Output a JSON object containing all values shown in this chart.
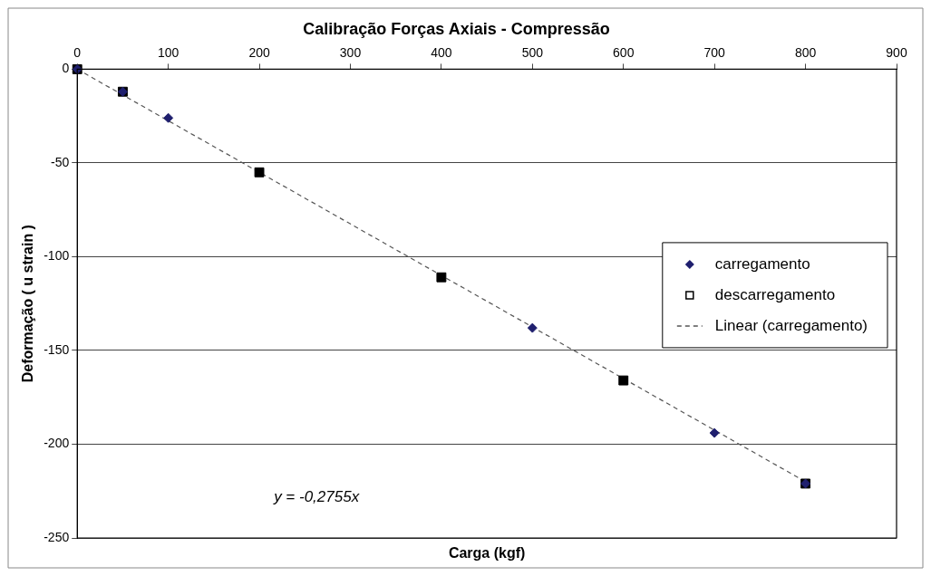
{
  "chart_data": {
    "type": "scatter",
    "title": "Calibração Forças Axiais - Compressão",
    "xlabel": "Carga (kgf)",
    "ylabel": "Deformação ( u strain )",
    "xlim": [
      0,
      900
    ],
    "xticks": [
      0,
      100,
      200,
      300,
      400,
      500,
      600,
      700,
      800,
      900
    ],
    "ylim": [
      -250,
      0
    ],
    "yticks": [
      -250,
      -200,
      -150,
      -100,
      -50,
      0
    ],
    "grid": "y",
    "legend": "top right",
    "annotations": [
      "y = -0,2755x"
    ],
    "series": [
      {
        "name": "carregamento",
        "color": "#1f1f6e",
        "marker": "diamond",
        "x": [
          0,
          50,
          100,
          500,
          700,
          800
        ],
        "values": [
          0,
          -12,
          -26,
          -138,
          -194,
          -221
        ]
      },
      {
        "name": "descarregamento",
        "color": "#000000",
        "marker": "square",
        "x": [
          0,
          50,
          200,
          400,
          600,
          800
        ],
        "values": [
          0,
          -12,
          -55,
          -111,
          -166,
          -221
        ]
      },
      {
        "name": "Linear (carregamento)",
        "type": "line",
        "color": "#555555",
        "line_style": "dashed",
        "marker": "none",
        "x": [
          0,
          800
        ],
        "values": [
          0,
          -220
        ]
      }
    ]
  }
}
